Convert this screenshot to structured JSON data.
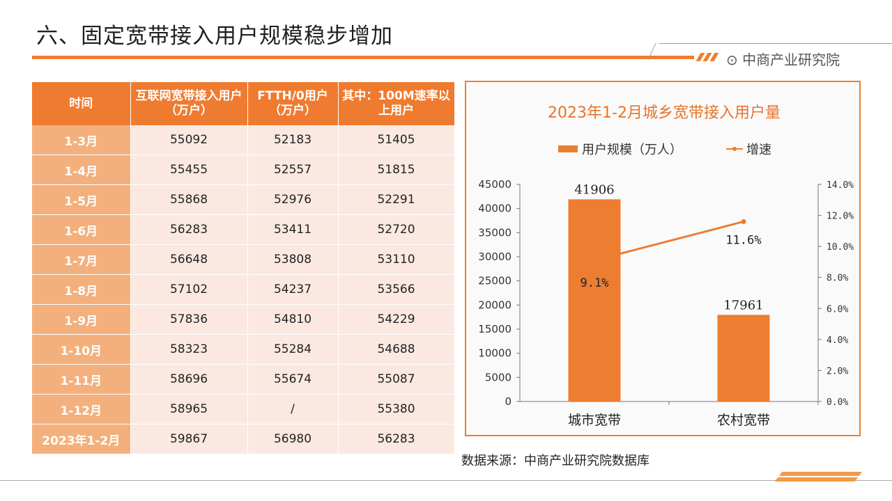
{
  "page": {
    "title": "六、固定宽带接入用户规模稳步增加",
    "logo_text": "中商产业研究院",
    "source": "数据来源：中商产业研究院数据库"
  },
  "table": {
    "headers": [
      "时间",
      "互联网宽带接入用户（万户）",
      "FTTH/0用户（万户）",
      "其中：100M速率以上用户"
    ],
    "rows": [
      [
        "1-3月",
        "55092",
        "52183",
        "51405"
      ],
      [
        "1-4月",
        "55455",
        "52557",
        "51815"
      ],
      [
        "1-5月",
        "55868",
        "52976",
        "52291"
      ],
      [
        "1-6月",
        "56283",
        "53411",
        "52720"
      ],
      [
        "1-7月",
        "56648",
        "53808",
        "53110"
      ],
      [
        "1-8月",
        "57102",
        "54237",
        "53566"
      ],
      [
        "1-9月",
        "57836",
        "54810",
        "54229"
      ],
      [
        "1-10月",
        "58323",
        "55284",
        "54688"
      ],
      [
        "1-11月",
        "58696",
        "55674",
        "55087"
      ],
      [
        "1-12月",
        "58965",
        "/",
        "55380"
      ],
      [
        "2023年1-2月",
        "59867",
        "56980",
        "56283"
      ]
    ]
  },
  "colors": {
    "accent": "#f07d2b",
    "bar": "#ed7d31",
    "header_bg": "#ef7b30",
    "time_col": "#f3b07d",
    "cell_bg": "#fbe9e1"
  },
  "chart_data": {
    "type": "bar",
    "title": "2023年1-2月城乡宽带接入用户量",
    "categories": [
      "城市宽带",
      "农村宽带"
    ],
    "series": [
      {
        "name": "用户规模（万人）",
        "type": "bar",
        "axis": "left",
        "values": [
          41906,
          17961
        ],
        "labels": [
          "41906",
          "17961"
        ]
      },
      {
        "name": "增速",
        "type": "line",
        "axis": "right",
        "values": [
          0.091,
          0.116
        ],
        "labels": [
          "9.1%",
          "11.6%"
        ]
      }
    ],
    "y_left": {
      "min": 0,
      "max": 45000,
      "ticks": [
        "0",
        "5000",
        "10000",
        "15000",
        "20000",
        "25000",
        "30000",
        "35000",
        "40000",
        "45000"
      ]
    },
    "y_right": {
      "min": 0,
      "max": 0.14,
      "ticks": [
        "0.0%",
        "2.0%",
        "4.0%",
        "6.0%",
        "8.0%",
        "10.0%",
        "12.0%",
        "14.0%"
      ]
    },
    "legend_position": "top",
    "grid": false
  }
}
